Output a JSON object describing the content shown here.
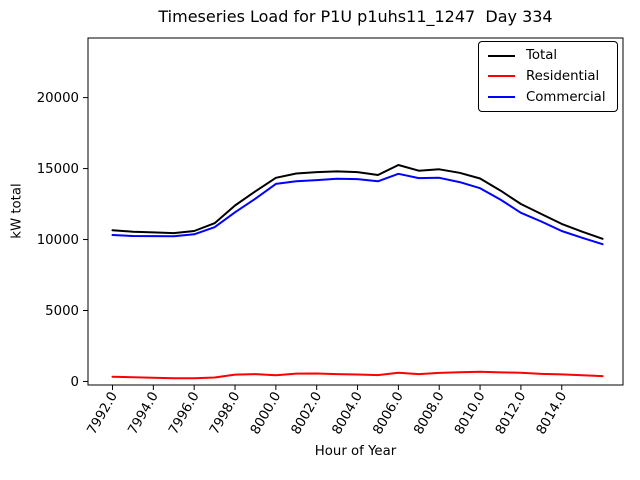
{
  "title": "Timeseries Load for P1U p1uhs11_1247  Day 334",
  "xlabel": "Hour of Year",
  "ylabel": "kW total",
  "legend": {
    "position": "upper right",
    "items": [
      {
        "label": "Total",
        "color": "#000000"
      },
      {
        "label": "Residential",
        "color": "#ff0000"
      },
      {
        "label": "Commercial",
        "color": "#0000ff"
      }
    ]
  },
  "chart_data": {
    "type": "line",
    "title": "Timeseries Load for P1U p1uhs11_1247  Day 334",
    "xlabel": "Hour of Year",
    "ylabel": "kW total",
    "grid": false,
    "legend_position": "upper right",
    "xlim": [
      7990.8,
      8017.0
    ],
    "ylim": [
      -250,
      24200
    ],
    "x": [
      7992,
      7993,
      7994,
      7995,
      7996,
      7997,
      7998,
      7999,
      8000,
      8001,
      8002,
      8003,
      8004,
      8005,
      8006,
      8007,
      8008,
      8009,
      8010,
      8011,
      8012,
      8013,
      8014,
      8015,
      8016
    ],
    "series": [
      {
        "name": "Total",
        "color": "#000000",
        "values": [
          10650,
          10550,
          10500,
          10450,
          10600,
          11150,
          12400,
          13400,
          14350,
          14650,
          14750,
          14800,
          14750,
          14550,
          15250,
          14850,
          14950,
          14700,
          14300,
          13450,
          12500,
          11800,
          11100,
          10550,
          10050
        ]
      },
      {
        "name": "Residential",
        "color": "#ff0000",
        "values": [
          330,
          300,
          260,
          220,
          230,
          280,
          480,
          520,
          430,
          550,
          560,
          520,
          490,
          450,
          620,
          520,
          600,
          650,
          680,
          640,
          620,
          530,
          500,
          430,
          380
        ]
      },
      {
        "name": "Commercial",
        "color": "#0000ff",
        "values": [
          10320,
          10250,
          10240,
          10230,
          10370,
          10870,
          11920,
          12880,
          13920,
          14100,
          14190,
          14280,
          14260,
          14100,
          14630,
          14330,
          14350,
          14050,
          13620,
          12810,
          11880,
          11270,
          10600,
          10120,
          9670
        ]
      }
    ],
    "xticks": {
      "values": [
        7992,
        7994,
        7996,
        7998,
        8000,
        8002,
        8004,
        8006,
        8008,
        8010,
        8012,
        8014
      ],
      "labels": [
        "7992.0",
        "7994.0",
        "7996.0",
        "7998.0",
        "8000.0",
        "8002.0",
        "8004.0",
        "8006.0",
        "8008.0",
        "8010.0",
        "8012.0",
        "8014.0"
      ],
      "rotation": 60
    },
    "yticks": {
      "values": [
        0,
        5000,
        10000,
        15000,
        20000
      ],
      "labels": [
        "0",
        "5000",
        "10000",
        "15000",
        "20000"
      ]
    }
  }
}
